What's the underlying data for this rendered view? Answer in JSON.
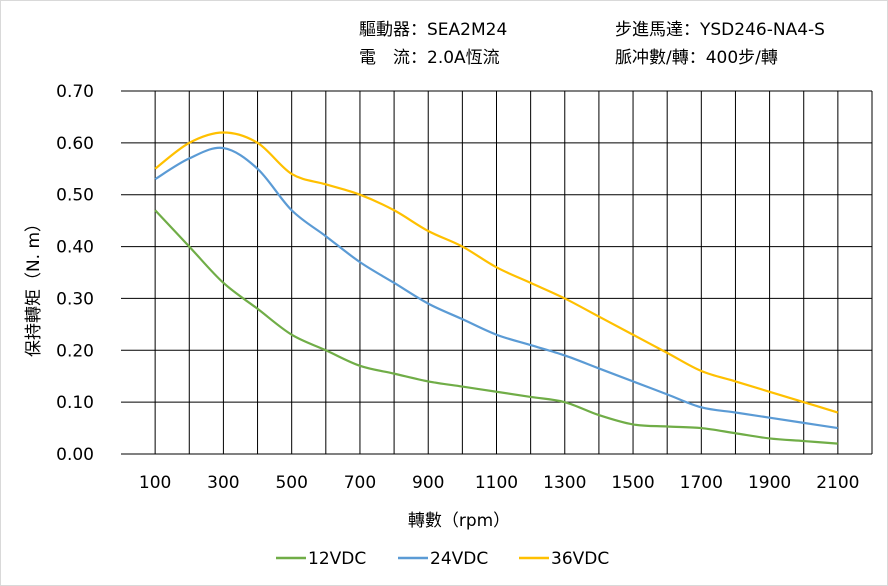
{
  "header": {
    "driver": "驅動器：SEA2M24",
    "motor": "步進馬達：YSD246-NA4-S",
    "current": "電　流：2.0A恆流",
    "pulses": "脈冲數/轉：400步/轉"
  },
  "chart_data": {
    "type": "line",
    "xlabel": "轉數（rpm）",
    "ylabel": "保持轉矩（N. m）",
    "xlim": [
      0,
      2200
    ],
    "ylim": [
      0,
      0.7
    ],
    "grid": true,
    "legend_position": "bottom",
    "xticks": [
      "100",
      "300",
      "500",
      "700",
      "900",
      "1100",
      "1300",
      "1500",
      "1700",
      "1900",
      "2100"
    ],
    "yticks": [
      "0.00",
      "0.10",
      "0.20",
      "0.30",
      "0.40",
      "0.50",
      "0.60",
      "0.70"
    ],
    "x": [
      100,
      200,
      300,
      400,
      500,
      600,
      700,
      800,
      900,
      1000,
      1100,
      1200,
      1300,
      1400,
      1500,
      1600,
      1700,
      1800,
      1900,
      2000,
      2100
    ],
    "series": [
      {
        "name": "12VDC",
        "color": "#70ad47",
        "values": [
          0.47,
          0.4,
          0.33,
          0.28,
          0.23,
          0.2,
          0.17,
          0.155,
          0.14,
          0.13,
          0.12,
          0.11,
          0.1,
          0.075,
          0.057,
          0.053,
          0.05,
          0.04,
          0.03,
          0.025,
          0.02
        ]
      },
      {
        "name": "24VDC",
        "color": "#5b9bd5",
        "values": [
          0.53,
          0.57,
          0.59,
          0.55,
          0.47,
          0.42,
          0.37,
          0.33,
          0.29,
          0.26,
          0.23,
          0.21,
          0.19,
          0.165,
          0.14,
          0.115,
          0.09,
          0.08,
          0.07,
          0.06,
          0.05
        ]
      },
      {
        "name": "36VDC",
        "color": "#ffc000",
        "values": [
          0.55,
          0.6,
          0.62,
          0.6,
          0.54,
          0.52,
          0.5,
          0.47,
          0.43,
          0.4,
          0.36,
          0.33,
          0.3,
          0.265,
          0.23,
          0.195,
          0.16,
          0.14,
          0.12,
          0.1,
          0.08
        ]
      }
    ]
  }
}
